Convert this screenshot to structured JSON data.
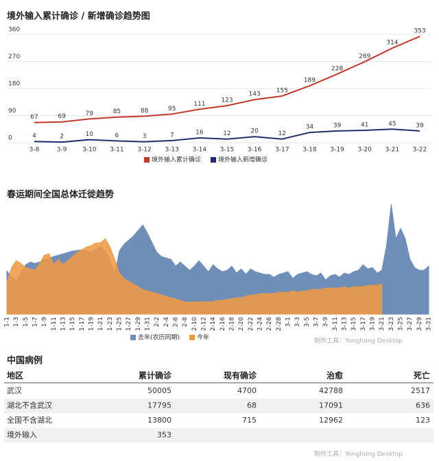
{
  "chart_data": [
    {
      "type": "line",
      "title": "境外输入累计确诊 / 新增确诊趋势图",
      "categories": [
        "3-8",
        "3-9",
        "3-10",
        "3-11",
        "3-12",
        "3-13",
        "3-14",
        "3-15",
        "3-16",
        "3-17",
        "3-18",
        "3-19",
        "3-20",
        "3-21",
        "3-22"
      ],
      "series": [
        {
          "name": "境外输入累计确诊",
          "color": "#c0392b",
          "values": [
            67,
            69,
            79,
            85,
            88,
            95,
            111,
            123,
            143,
            155,
            189,
            228,
            269,
            314,
            353
          ]
        },
        {
          "name": "境外输入新增确诊",
          "color": "#1f2d6e",
          "values": [
            4,
            2,
            10,
            6,
            3,
            7,
            16,
            12,
            20,
            12,
            34,
            39,
            41,
            45,
            39
          ]
        }
      ],
      "ylim": [
        0,
        360
      ],
      "yticks": [
        0,
        90,
        180,
        270,
        360
      ],
      "grid": true,
      "legend": "bottom"
    },
    {
      "type": "area",
      "title": "春运期间全国总体迁徙趋势",
      "categories": [
        "1-1",
        null,
        "1-3",
        null,
        "1-5",
        null,
        "1-7",
        null,
        "1-9",
        null,
        "1-11",
        null,
        "1-13",
        null,
        "1-15",
        null,
        "1-17",
        null,
        "1-19",
        null,
        "1-21",
        null,
        "1-23",
        null,
        "1-25",
        null,
        "1-27",
        null,
        "1-29",
        null,
        "1-31",
        null,
        "2-2",
        null,
        "2-4",
        null,
        "2-6",
        null,
        "2-8",
        null,
        "2-10",
        null,
        "2-12",
        null,
        "2-14",
        null,
        "2-16",
        null,
        "2-18",
        null,
        "2-20",
        null,
        "2-22",
        null,
        "2-24",
        null,
        "2-26",
        null,
        "2-28",
        null,
        "3-1",
        null,
        "3-3",
        null,
        "3-5",
        null,
        "3-7",
        null,
        "3-9",
        null,
        "3-11",
        null,
        "3-13",
        null,
        "3-15",
        null,
        "3-17",
        null,
        "3-19",
        null,
        "3-21",
        null,
        "3-23",
        null,
        "3-25",
        null,
        "3-27",
        null,
        "3-29",
        null,
        "3-31"
      ],
      "series": [
        {
          "name": "去年(农历同期)",
          "color": "#6f8fb8",
          "values": [
            63,
            55,
            48,
            60,
            72,
            76,
            74,
            76,
            80,
            82,
            84,
            86,
            88,
            90,
            92,
            93,
            94,
            92,
            90,
            94,
            98,
            90,
            80,
            58,
            92,
            102,
            108,
            114,
            122,
            130,
            118,
            104,
            90,
            84,
            82,
            80,
            70,
            76,
            70,
            64,
            70,
            78,
            70,
            62,
            72,
            66,
            62,
            64,
            70,
            60,
            66,
            58,
            66,
            62,
            60,
            58,
            58,
            54,
            58,
            60,
            62,
            52,
            58,
            60,
            62,
            58,
            56,
            60,
            50,
            56,
            58,
            54,
            60,
            58,
            62,
            64,
            72,
            66,
            68,
            60,
            64,
            100,
            160,
            110,
            125,
            110,
            80,
            68,
            64,
            64,
            70
          ]
        },
        {
          "name": "今年",
          "color": "#ee9a45",
          "values": [
            46,
            68,
            78,
            74,
            68,
            66,
            64,
            74,
            86,
            88,
            72,
            80,
            72,
            78,
            84,
            90,
            94,
            98,
            100,
            104,
            104,
            110,
            98,
            80,
            60,
            52,
            48,
            44,
            40,
            36,
            34,
            32,
            30,
            28,
            26,
            24,
            22,
            20,
            18,
            17,
            18,
            18,
            18,
            18,
            18,
            20,
            20,
            22,
            22,
            24,
            24,
            26,
            28,
            28,
            30,
            30,
            30,
            30,
            32,
            32,
            32,
            34,
            32,
            34,
            34,
            36,
            36,
            36,
            38,
            38,
            38,
            38,
            40,
            38,
            40,
            40,
            40,
            42,
            42,
            42,
            44,
            null,
            null,
            null,
            null,
            null,
            null,
            null,
            null,
            null,
            null
          ]
        }
      ],
      "ylim": [
        0,
        160
      ],
      "legend": "bottom",
      "footnote": "制作工具：Yonghong Desktop"
    }
  ],
  "table": {
    "title": "中国病例",
    "header": [
      "地区",
      "累计确诊",
      "现有确诊",
      "治愈",
      "死亡"
    ],
    "rows": [
      [
        "武汉",
        50005,
        4700,
        42788,
        2517
      ],
      [
        "湖北不含武汉",
        17795,
        68,
        17091,
        636
      ],
      [
        "全国不含湖北",
        13800,
        715,
        12962,
        123
      ],
      [
        "境外输入",
        353,
        null,
        null,
        null
      ]
    ],
    "footnote": "制作工具：Yonghong Desktop"
  }
}
